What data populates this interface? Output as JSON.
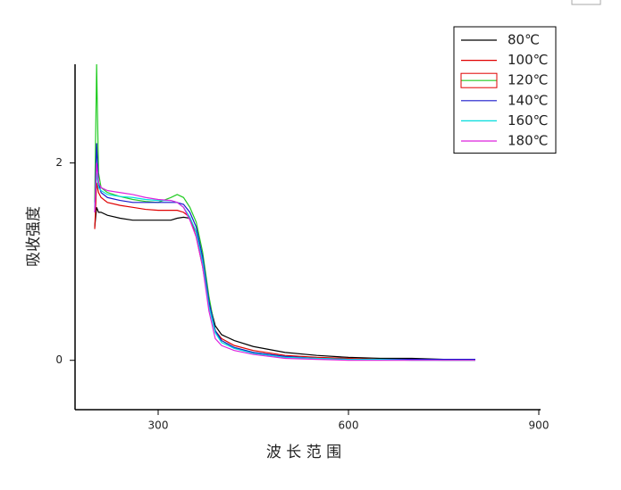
{
  "chart_data": {
    "type": "line",
    "xlabel": "波 长 范 围",
    "ylabel": "吸收强度",
    "x": [
      200,
      203,
      206,
      210,
      220,
      240,
      260,
      280,
      300,
      320,
      330,
      340,
      350,
      360,
      370,
      380,
      390,
      400,
      420,
      450,
      500,
      550,
      600,
      650,
      700,
      750,
      800
    ],
    "series": [
      {
        "name": "80℃",
        "color": "#000000",
        "values": [
          1.35,
          1.55,
          1.5,
          1.5,
          1.47,
          1.44,
          1.42,
          1.42,
          1.42,
          1.42,
          1.44,
          1.45,
          1.44,
          1.3,
          1.0,
          0.6,
          0.35,
          0.26,
          0.2,
          0.14,
          0.08,
          0.05,
          0.03,
          0.02,
          0.02,
          0.01,
          0.01
        ]
      },
      {
        "name": "100℃",
        "color": "#e00000",
        "values": [
          1.33,
          1.8,
          1.7,
          1.65,
          1.6,
          1.57,
          1.55,
          1.53,
          1.52,
          1.52,
          1.52,
          1.5,
          1.45,
          1.25,
          0.95,
          0.55,
          0.3,
          0.22,
          0.15,
          0.1,
          0.05,
          0.03,
          0.02,
          0.01,
          0.01,
          0.01,
          0.01
        ]
      },
      {
        "name": "120℃",
        "color": "#22cc22",
        "values": [
          1.6,
          3.0,
          1.9,
          1.75,
          1.7,
          1.66,
          1.63,
          1.61,
          1.6,
          1.65,
          1.68,
          1.65,
          1.55,
          1.4,
          1.1,
          0.65,
          0.3,
          0.2,
          0.13,
          0.08,
          0.04,
          0.02,
          0.01,
          0.01,
          0.01,
          0.0,
          0.0
        ]
      },
      {
        "name": "140℃",
        "color": "#1a1acc",
        "values": [
          1.5,
          2.2,
          1.8,
          1.7,
          1.65,
          1.62,
          1.6,
          1.6,
          1.6,
          1.6,
          1.6,
          1.58,
          1.5,
          1.35,
          1.05,
          0.6,
          0.3,
          0.2,
          0.13,
          0.08,
          0.04,
          0.02,
          0.01,
          0.01,
          0.01,
          0.01,
          0.01
        ]
      },
      {
        "name": "160℃",
        "color": "#00dddd",
        "values": [
          1.55,
          1.9,
          1.75,
          1.72,
          1.68,
          1.66,
          1.65,
          1.63,
          1.62,
          1.62,
          1.6,
          1.55,
          1.45,
          1.3,
          1.0,
          0.55,
          0.28,
          0.18,
          0.12,
          0.07,
          0.03,
          0.02,
          0.01,
          0.01,
          0.0,
          0.0,
          0.0
        ]
      },
      {
        "name": "180℃",
        "color": "#dd22dd",
        "values": [
          1.5,
          2.0,
          1.8,
          1.75,
          1.72,
          1.7,
          1.68,
          1.65,
          1.63,
          1.62,
          1.6,
          1.55,
          1.42,
          1.25,
          0.95,
          0.5,
          0.22,
          0.15,
          0.1,
          0.06,
          0.02,
          0.01,
          0.0,
          0.0,
          0.0,
          0.0,
          0.0
        ]
      }
    ],
    "xlim": [
      169,
      900
    ],
    "xticks": [
      300,
      600,
      900
    ],
    "ylim": [
      -0.5,
      3
    ],
    "yticks": [
      0,
      2
    ],
    "grid": false,
    "legend": "upper right"
  }
}
